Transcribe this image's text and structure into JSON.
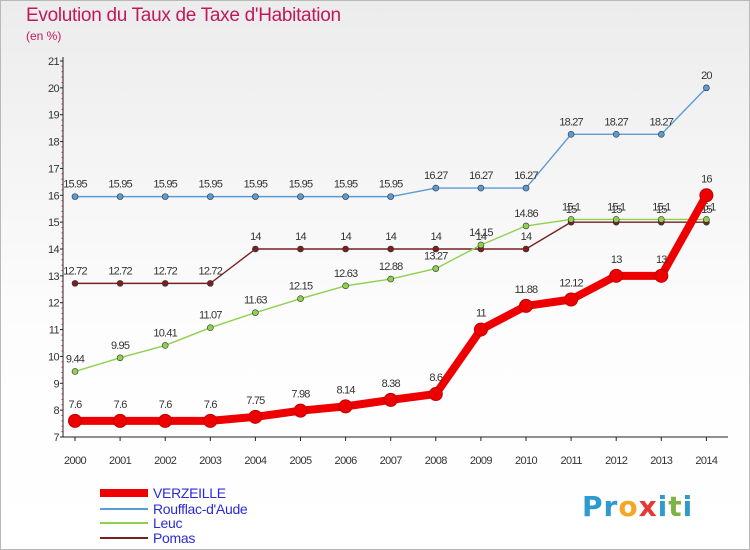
{
  "title": "Evolution du Taux de Taxe d'Habitation",
  "subtitle": "(en %)",
  "logo": {
    "letters": [
      "P",
      "r",
      "o",
      "x",
      "i",
      "t",
      "i"
    ],
    "colors": [
      "#2e9ad0",
      "#2e9ad0",
      "#f5a623",
      "#e53935",
      "#2e9ad0",
      "#7cb342",
      "#2e9ad0"
    ]
  },
  "chart_data": {
    "type": "line",
    "x": [
      "2000",
      "2001",
      "2002",
      "2003",
      "2004",
      "2005",
      "2006",
      "2007",
      "2008",
      "2009",
      "2010",
      "2011",
      "2012",
      "2013",
      "2014"
    ],
    "ylim": [
      7,
      21
    ],
    "yticks": [
      7,
      8,
      9,
      10,
      11,
      12,
      13,
      14,
      15,
      16,
      17,
      18,
      19,
      20,
      21
    ],
    "grid": false,
    "legend": "bottom-left",
    "series": [
      {
        "name": "VERZEILLE",
        "color": "#ee0000",
        "values": [
          7.6,
          7.6,
          7.6,
          7.6,
          7.75,
          7.98,
          8.14,
          8.38,
          8.6,
          11,
          11.88,
          12.12,
          13,
          13,
          16
        ],
        "labels": [
          "7.6",
          "7.6",
          "7.6",
          "7.6",
          "7.75",
          "7.98",
          "8.14",
          "8.38",
          "8.6",
          "11",
          "11.88",
          "12.12",
          "13",
          "13",
          "16"
        ]
      },
      {
        "name": "Roufflac-d'Aude",
        "color": "#5b9bd5",
        "values": [
          15.95,
          15.95,
          15.95,
          15.95,
          15.95,
          15.95,
          15.95,
          15.95,
          16.27,
          16.27,
          16.27,
          18.27,
          18.27,
          18.27,
          20
        ],
        "labels": [
          "15.95",
          "15.95",
          "15.95",
          "15.95",
          "15.95",
          "15.95",
          "15.95",
          "15.95",
          "16.27",
          "16.27",
          "16.27",
          "18.27",
          "18.27",
          "18.27",
          "20"
        ]
      },
      {
        "name": "Leuc",
        "color": "#8fd14f",
        "values": [
          9.44,
          9.95,
          10.41,
          11.07,
          11.63,
          12.15,
          12.63,
          12.88,
          13.27,
          14.15,
          14.86,
          15.1,
          15.1,
          15.1,
          15.1
        ],
        "labels": [
          "9.44",
          "9.95",
          "10.41",
          "11.07",
          "11.63",
          "12.15",
          "12.63",
          "12.88",
          "13.27",
          "14.15",
          "14.86",
          "15.1",
          "15.1",
          "15.1",
          "15.1"
        ]
      },
      {
        "name": "Pomas",
        "color": "#7a2020",
        "values": [
          12.72,
          12.72,
          12.72,
          12.72,
          14,
          14,
          14,
          14,
          14,
          14,
          14,
          15,
          15,
          15,
          15
        ],
        "labels": [
          "12.72",
          "12.72",
          "12.72",
          "12.72",
          "14",
          "14",
          "14",
          "14",
          "14",
          "14",
          "14",
          "15",
          "15",
          "15",
          "15"
        ]
      }
    ]
  }
}
